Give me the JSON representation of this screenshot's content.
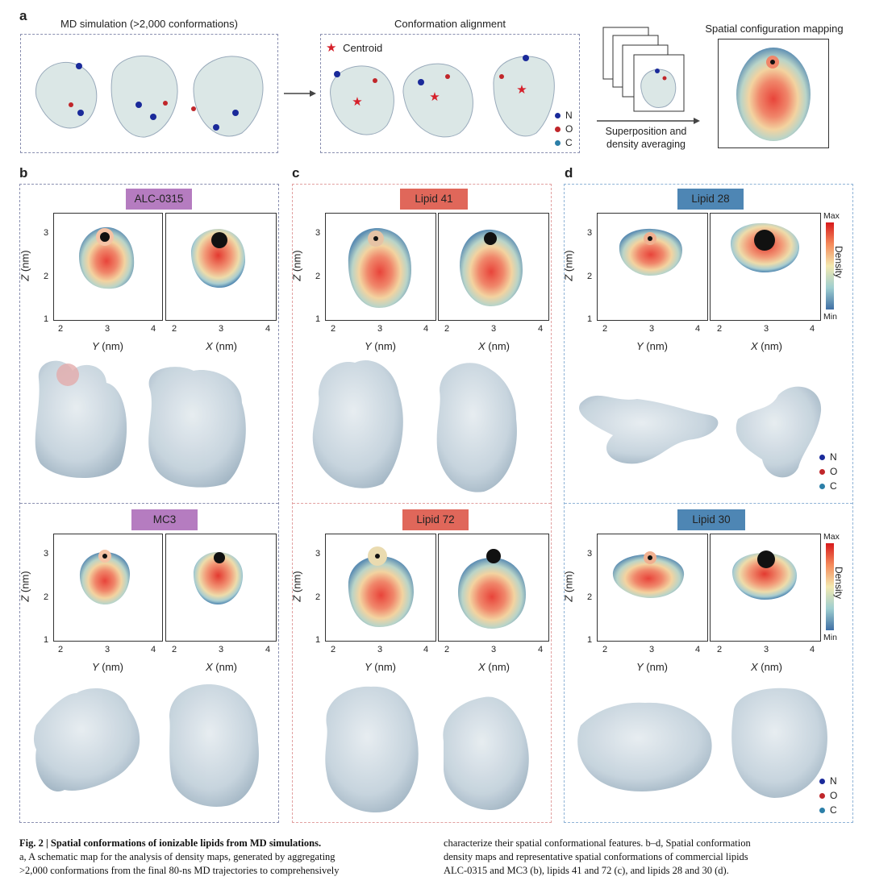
{
  "panel_a": {
    "letter": "a",
    "md_title": "MD simulation (>2,000 conformations)",
    "align_title": "Conformation alignment",
    "centroid_label": "Centroid",
    "legend": [
      {
        "label": "N",
        "color": "#1a2a9a"
      },
      {
        "label": "O",
        "color": "#c0262a"
      },
      {
        "label": "C",
        "color": "#2c7fa8"
      }
    ],
    "superposition_label_1": "Superposition and",
    "superposition_label_2": "density averaging",
    "mapping_title": "Spatial configuration mapping"
  },
  "panels": [
    {
      "letter": "b",
      "top": {
        "name": "ALC-0315",
        "color": "#b57cc0"
      },
      "bottom": {
        "name": "MC3",
        "color": "#b57cc0"
      }
    },
    {
      "letter": "c",
      "top": {
        "name": "Lipid 41",
        "color": "#e0675a"
      },
      "bottom": {
        "name": "Lipid 72",
        "color": "#e0675a"
      }
    },
    {
      "letter": "d",
      "top": {
        "name": "Lipid 28",
        "color": "#4e86b4"
      },
      "bottom": {
        "name": "Lipid 30",
        "color": "#4e86b4"
      }
    }
  ],
  "axes": {
    "y_ticks": [
      "3",
      "2",
      "1"
    ],
    "x_ticks": [
      "2",
      "3",
      "4"
    ],
    "ylabel_var": "Z",
    "ylabel_unit": " (nm)",
    "xlabel_left_var": "Y",
    "xlabel_right_var": "X",
    "xlabel_unit": " (nm)"
  },
  "colorbar": {
    "max": "Max",
    "min": "Min",
    "label": "Density"
  },
  "atom_legend": [
    {
      "label": "N",
      "color": "#1a2a9a"
    },
    {
      "label": "O",
      "color": "#c0262a"
    },
    {
      "label": "C",
      "color": "#2c7fa8"
    }
  ],
  "caption": {
    "title": "Fig. 2 | Spatial conformations of ionizable lipids from MD simulations.",
    "col1_line1": "a, A schematic map for the analysis of density maps, generated by aggregating",
    "col1_line2": ">2,000 conformations from the final 80-ns MD trajectories to comprehensively",
    "col2_line1": "characterize their spatial conformational features. b–d, Spatial conformation",
    "col2_line2": "density maps and representative spatial conformations of commercial lipids",
    "col2_line3": "ALC-0315 and MC3 (b), lipids 41 and 72 (c), and lipids 28 and 30 (d)."
  }
}
